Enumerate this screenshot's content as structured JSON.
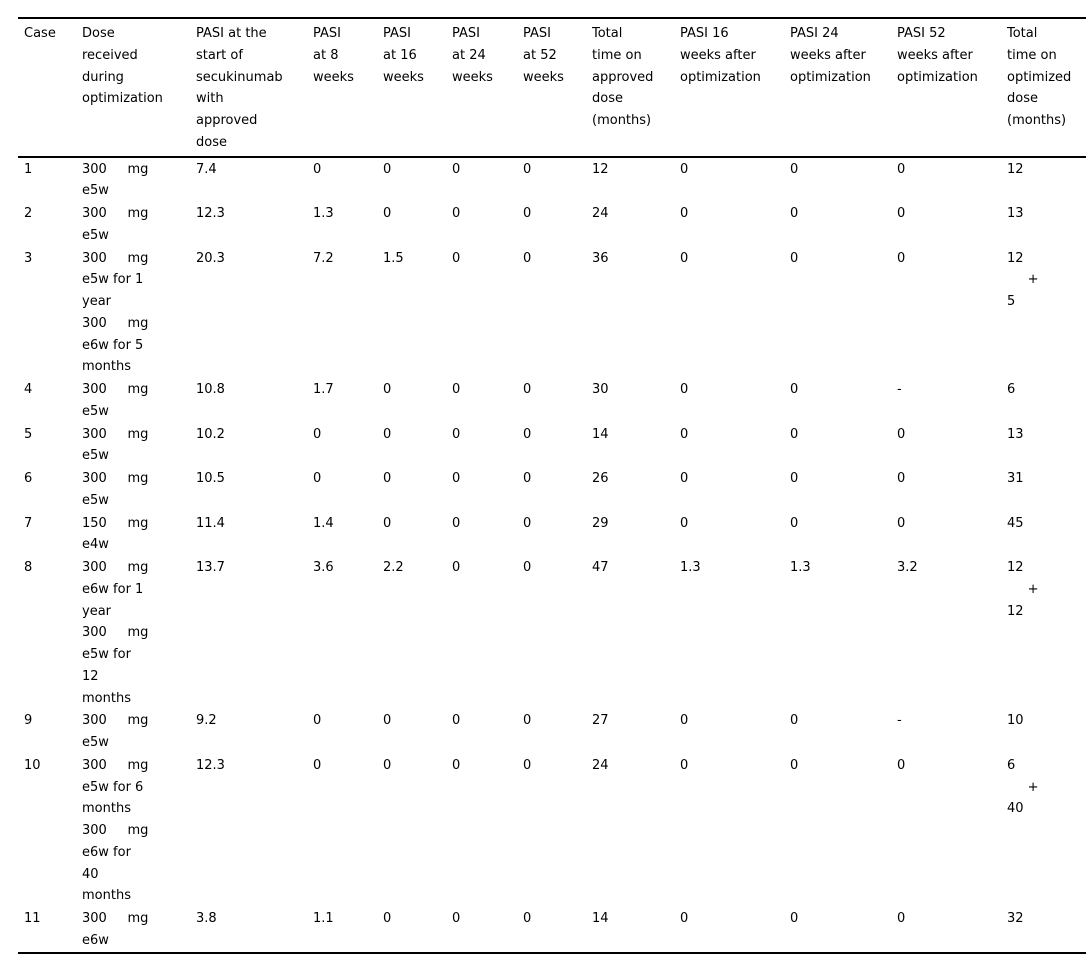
{
  "table": {
    "columns": [
      {
        "key": "case",
        "lines": [
          "Case"
        ]
      },
      {
        "key": "dose",
        "lines": [
          "Dose",
          "received",
          "during",
          "optimization"
        ]
      },
      {
        "key": "pasi_start",
        "lines": [
          "PASI at the",
          "start of",
          "secukinumab",
          "with",
          "approved",
          "dose"
        ]
      },
      {
        "key": "pasi_w8",
        "lines": [
          "PASI",
          "at 8",
          "weeks"
        ]
      },
      {
        "key": "pasi_w16",
        "lines": [
          "PASI",
          "at 16",
          "weeks"
        ]
      },
      {
        "key": "pasi_w24",
        "lines": [
          "PASI",
          "at 24",
          "weeks"
        ]
      },
      {
        "key": "pasi_w52",
        "lines": [
          "PASI",
          "at 52",
          "weeks"
        ]
      },
      {
        "key": "total_approved",
        "lines": [
          "Total",
          "time on",
          "approved",
          "dose",
          "(months)"
        ]
      },
      {
        "key": "pasi_16_after",
        "lines": [
          "PASI 16",
          "weeks after",
          "optimization"
        ]
      },
      {
        "key": "pasi_24_after",
        "lines": [
          "PASI 24",
          "weeks after",
          "optimization"
        ]
      },
      {
        "key": "pasi_52_after",
        "lines": [
          "PASI 52",
          "weeks after",
          "optimization"
        ]
      },
      {
        "key": "total_optimized",
        "lines": [
          "Total",
          "time on",
          "optimized",
          "dose",
          "(months)"
        ]
      }
    ],
    "rows": [
      {
        "case": "1",
        "dose": [
          "300     mg",
          "e5w"
        ],
        "pasi_start": "7.4",
        "pasi_w8": "0",
        "pasi_w16": "0",
        "pasi_w24": "0",
        "pasi_w52": "0",
        "total_approved": "12",
        "pasi_16_after": "0",
        "pasi_24_after": "0",
        "pasi_52_after": "0",
        "total_optimized": "12"
      },
      {
        "case": "2",
        "dose": [
          "300     mg",
          "e5w"
        ],
        "pasi_start": "12.3",
        "pasi_w8": "1.3",
        "pasi_w16": "0",
        "pasi_w24": "0",
        "pasi_w52": "0",
        "total_approved": "24",
        "pasi_16_after": "0",
        "pasi_24_after": "0",
        "pasi_52_after": "0",
        "total_optimized": "13"
      },
      {
        "case": "3",
        "dose": [
          "300     mg",
          "e5w for 1",
          "year",
          "300     mg",
          "e6w for 5",
          "months"
        ],
        "pasi_start": "20.3",
        "pasi_w8": "7.2",
        "pasi_w16": "1.5",
        "pasi_w24": "0",
        "pasi_w52": "0",
        "total_approved": "36",
        "pasi_16_after": "0",
        "pasi_24_after": "0",
        "pasi_52_after": "0",
        "total_optimized": [
          "12",
          "     +",
          "5"
        ]
      },
      {
        "case": "4",
        "dose": [
          "300     mg",
          "e5w"
        ],
        "pasi_start": "10.8",
        "pasi_w8": "1.7",
        "pasi_w16": "0",
        "pasi_w24": "0",
        "pasi_w52": "0",
        "total_approved": "30",
        "pasi_16_after": "0",
        "pasi_24_after": "0",
        "pasi_52_after": "-",
        "total_optimized": "6"
      },
      {
        "case": "5",
        "dose": [
          "300     mg",
          "e5w"
        ],
        "pasi_start": "10.2",
        "pasi_w8": "0",
        "pasi_w16": "0",
        "pasi_w24": "0",
        "pasi_w52": "0",
        "total_approved": "14",
        "pasi_16_after": "0",
        "pasi_24_after": "0",
        "pasi_52_after": "0",
        "total_optimized": "13"
      },
      {
        "case": "6",
        "dose": [
          "300     mg",
          "e5w"
        ],
        "pasi_start": "10.5",
        "pasi_w8": "0",
        "pasi_w16": "0",
        "pasi_w24": "0",
        "pasi_w52": "0",
        "total_approved": "26",
        "pasi_16_after": "0",
        "pasi_24_after": "0",
        "pasi_52_after": "0",
        "total_optimized": "31"
      },
      {
        "case": "7",
        "dose": [
          "150     mg",
          "e4w"
        ],
        "pasi_start": "11.4",
        "pasi_w8": "1.4",
        "pasi_w16": "0",
        "pasi_w24": "0",
        "pasi_w52": "0",
        "total_approved": "29",
        "pasi_16_after": "0",
        "pasi_24_after": "0",
        "pasi_52_after": "0",
        "total_optimized": "45"
      },
      {
        "case": "8",
        "dose": [
          "300     mg",
          "e6w for 1",
          "year",
          "300     mg",
          "e5w for",
          "12",
          "months"
        ],
        "pasi_start": "13.7",
        "pasi_w8": "3.6",
        "pasi_w16": "2.2",
        "pasi_w24": "0",
        "pasi_w52": "0",
        "total_approved": "47",
        "pasi_16_after": "1.3",
        "pasi_24_after": "1.3",
        "pasi_52_after": "3.2",
        "total_optimized": [
          "12",
          "     +",
          "12"
        ]
      },
      {
        "case": "9",
        "dose": [
          "300     mg",
          "e5w"
        ],
        "pasi_start": "9.2",
        "pasi_w8": "0",
        "pasi_w16": "0",
        "pasi_w24": "0",
        "pasi_w52": "0",
        "total_approved": "27",
        "pasi_16_after": "0",
        "pasi_24_after": "0",
        "pasi_52_after": "-",
        "total_optimized": "10"
      },
      {
        "case": "10",
        "dose": [
          "300     mg",
          "e5w for 6",
          "months",
          "300     mg",
          "e6w for",
          "40",
          "months"
        ],
        "pasi_start": "12.3",
        "pasi_w8": "0",
        "pasi_w16": "0",
        "pasi_w24": "0",
        "pasi_w52": "0",
        "total_approved": "24",
        "pasi_16_after": "0",
        "pasi_24_after": "0",
        "pasi_52_after": "0",
        "total_optimized": [
          "6",
          "     +",
          "40"
        ]
      },
      {
        "case": "11",
        "dose": [
          "300     mg",
          "e6w"
        ],
        "pasi_start": "3.8",
        "pasi_w8": "1.1",
        "pasi_w16": "0",
        "pasi_w24": "0",
        "pasi_w52": "0",
        "total_approved": "14",
        "pasi_16_after": "0",
        "pasi_24_after": "0",
        "pasi_52_after": "0",
        "total_optimized": "32"
      }
    ]
  }
}
